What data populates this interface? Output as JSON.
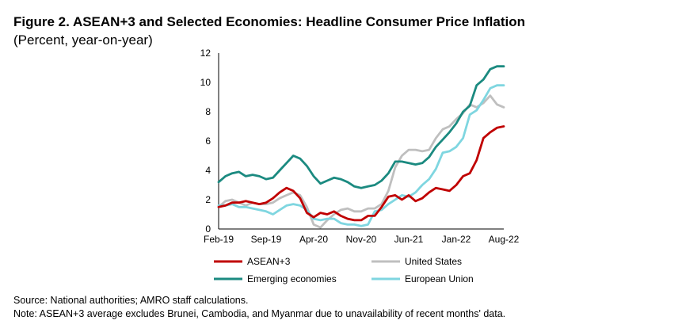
{
  "title": "Figure 2. ASEAN+3 and Selected Economies: Headline Consumer Price Inflation",
  "subtitle": "(Percent, year-on-year)",
  "source_note": "Source: National authorities; AMRO staff calculations.",
  "footnote": "Note: ASEAN+3 average excludes Brunei, Cambodia, and Myanmar due to unavailability of recent months' data.",
  "chart_data": {
    "type": "line",
    "title": "",
    "xlabel": "",
    "ylabel": "",
    "ylim": [
      0,
      12
    ],
    "yticks": [
      0,
      2,
      4,
      6,
      8,
      10,
      12
    ],
    "x": [
      "Feb-19",
      "Mar-19",
      "Apr-19",
      "May-19",
      "Jun-19",
      "Jul-19",
      "Aug-19",
      "Sep-19",
      "Oct-19",
      "Nov-19",
      "Dec-19",
      "Jan-20",
      "Feb-20",
      "Mar-20",
      "Apr-20",
      "May-20",
      "Jun-20",
      "Jul-20",
      "Aug-20",
      "Sep-20",
      "Oct-20",
      "Nov-20",
      "Dec-20",
      "Jan-21",
      "Feb-21",
      "Mar-21",
      "Apr-21",
      "May-21",
      "Jun-21",
      "Jul-21",
      "Aug-21",
      "Sep-21",
      "Oct-21",
      "Nov-21",
      "Dec-21",
      "Jan-22",
      "Feb-22",
      "Mar-22",
      "Apr-22",
      "May-22",
      "Jun-22",
      "Jul-22",
      "Aug-22"
    ],
    "xtick_labels": [
      "Feb-19",
      "Sep-19",
      "Apr-20",
      "Nov-20",
      "Jun-21",
      "Jan-22",
      "Aug-22"
    ],
    "grid": false,
    "legend_position": "bottom",
    "series": [
      {
        "name": "ASEAN+3",
        "color": "#c00000",
        "values": [
          1.5,
          1.6,
          1.8,
          1.8,
          1.9,
          1.8,
          1.7,
          1.8,
          2.1,
          2.5,
          2.8,
          2.6,
          2.1,
          1.1,
          0.8,
          1.1,
          1.0,
          1.2,
          0.9,
          0.7,
          0.6,
          0.6,
          0.9,
          0.9,
          1.5,
          2.2,
          2.3,
          2.0,
          2.3,
          1.9,
          2.1,
          2.5,
          2.8,
          2.7,
          2.6,
          3.0,
          3.6,
          3.8,
          4.7,
          6.2,
          6.6,
          6.9,
          7.0
        ]
      },
      {
        "name": "United States",
        "color": "#bfbfbf",
        "values": [
          1.5,
          1.9,
          2.0,
          1.8,
          1.6,
          1.8,
          1.7,
          1.7,
          1.8,
          2.1,
          2.3,
          2.5,
          2.3,
          1.5,
          0.3,
          0.1,
          0.6,
          1.0,
          1.3,
          1.4,
          1.2,
          1.2,
          1.4,
          1.4,
          1.7,
          2.6,
          4.2,
          5.0,
          5.4,
          5.4,
          5.3,
          5.4,
          6.2,
          6.8,
          7.0,
          7.5,
          7.9,
          8.5,
          8.3,
          8.6,
          9.1,
          8.5,
          8.3
        ]
      },
      {
        "name": "Emerging economies",
        "color": "#1b8a80",
        "values": [
          3.2,
          3.6,
          3.8,
          3.9,
          3.6,
          3.7,
          3.6,
          3.4,
          3.5,
          4.0,
          4.5,
          5.0,
          4.8,
          4.3,
          3.6,
          3.1,
          3.3,
          3.5,
          3.4,
          3.2,
          2.9,
          2.8,
          2.9,
          3.0,
          3.3,
          3.8,
          4.6,
          4.6,
          4.5,
          4.4,
          4.5,
          4.9,
          5.6,
          6.1,
          6.6,
          7.2,
          8.0,
          8.4,
          9.8,
          10.2,
          10.9,
          11.1,
          11.1
        ]
      },
      {
        "name": "European Union",
        "color": "#7fd6e0",
        "values": [
          1.6,
          1.6,
          1.7,
          1.5,
          1.5,
          1.4,
          1.3,
          1.2,
          1.0,
          1.3,
          1.6,
          1.7,
          1.6,
          1.3,
          0.7,
          0.6,
          0.7,
          0.7,
          0.4,
          0.3,
          0.3,
          0.2,
          0.3,
          1.2,
          1.3,
          1.7,
          2.0,
          2.3,
          2.2,
          2.5,
          3.0,
          3.4,
          4.1,
          5.2,
          5.3,
          5.6,
          6.2,
          7.8,
          8.1,
          8.8,
          9.6,
          9.8,
          9.8
        ]
      }
    ]
  }
}
